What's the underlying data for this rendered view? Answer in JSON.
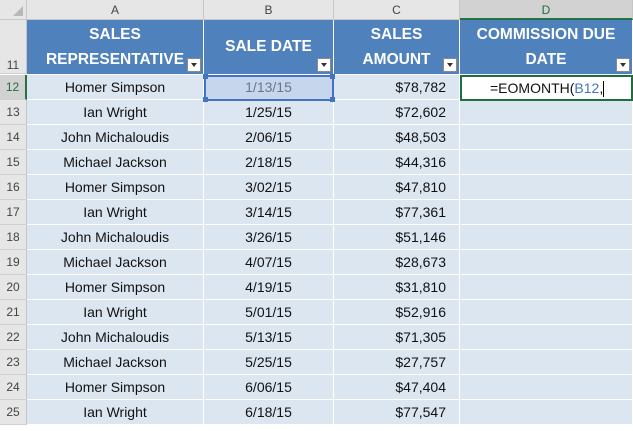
{
  "columns": [
    "A",
    "B",
    "C",
    "D"
  ],
  "active_column": "D",
  "active_row": "12",
  "header_row": "11",
  "headers": {
    "a_line1": "SALES",
    "a_line2": "REPRESENTATIVE",
    "b": "SALE DATE",
    "c_line1": "SALES",
    "c_line2": "AMOUNT",
    "d_line1": "COMMISSION DUE",
    "d_line2": "DATE"
  },
  "rows": [
    {
      "num": "12",
      "rep": "Homer Simpson",
      "date": "1/13/15",
      "amount": "$78,782"
    },
    {
      "num": "13",
      "rep": "Ian Wright",
      "date": "1/25/15",
      "amount": "$72,602"
    },
    {
      "num": "14",
      "rep": "John Michaloudis",
      "date": "2/06/15",
      "amount": "$48,503"
    },
    {
      "num": "15",
      "rep": "Michael Jackson",
      "date": "2/18/15",
      "amount": "$44,316"
    },
    {
      "num": "16",
      "rep": "Homer Simpson",
      "date": "3/02/15",
      "amount": "$47,810"
    },
    {
      "num": "17",
      "rep": "Ian Wright",
      "date": "3/14/15",
      "amount": "$77,361"
    },
    {
      "num": "18",
      "rep": "John Michaloudis",
      "date": "3/26/15",
      "amount": "$51,146"
    },
    {
      "num": "19",
      "rep": "Michael Jackson",
      "date": "4/07/15",
      "amount": "$28,673"
    },
    {
      "num": "20",
      "rep": "Homer Simpson",
      "date": "4/19/15",
      "amount": "$31,810"
    },
    {
      "num": "21",
      "rep": "Ian Wright",
      "date": "5/01/15",
      "amount": "$52,916"
    },
    {
      "num": "22",
      "rep": "John Michaloudis",
      "date": "5/13/15",
      "amount": "$71,305"
    },
    {
      "num": "23",
      "rep": "Michael Jackson",
      "date": "5/25/15",
      "amount": "$27,757"
    },
    {
      "num": "24",
      "rep": "Homer Simpson",
      "date": "6/06/15",
      "amount": "$47,404"
    },
    {
      "num": "25",
      "rep": "Ian Wright",
      "date": "6/18/15",
      "amount": "$77,547"
    }
  ],
  "editing_cell": {
    "formula_prefix": "=EOMONTH(",
    "formula_ref": "B12",
    "formula_suffix": ","
  },
  "colors": {
    "header_fill": "#4f81bd",
    "band_fill": "#dce6f1",
    "ref_blue": "#4472c4",
    "active_green": "#217346"
  }
}
